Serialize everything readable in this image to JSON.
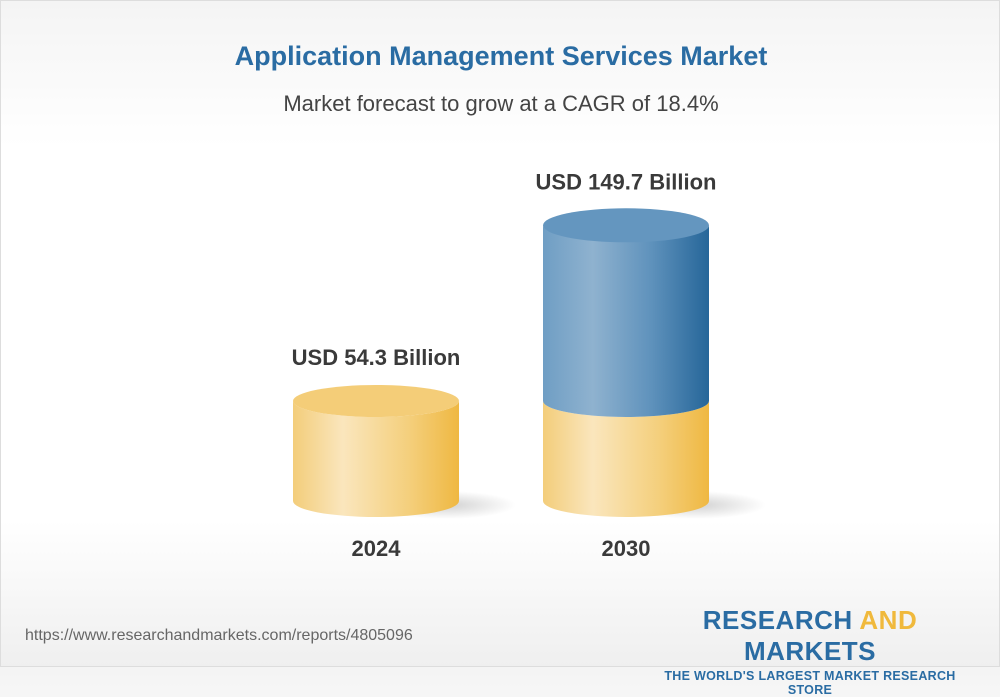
{
  "header": {
    "title": "Application Management Services Market",
    "subtitle": "Market forecast to grow at a CAGR of 18.4%"
  },
  "chart_data": {
    "type": "bar",
    "style": "3d-cylinder",
    "title": "Application Management Services Market",
    "subtitle": "Market forecast to grow at a CAGR of 18.4%",
    "categories": [
      "2024",
      "2030"
    ],
    "values": [
      54.3,
      149.7
    ],
    "data_labels": [
      "USD 54.3 Billion",
      "USD 149.7 Billion"
    ],
    "unit": "USD Billion",
    "cagr_percent": 18.4,
    "grid": false,
    "legend": "none",
    "colors": {
      "base": "#f2c260",
      "growth": "#3e7bab"
    }
  },
  "footer": {
    "url": "https://www.researchandmarkets.com/reports/4805096",
    "logo_part1": "RESEARCH ",
    "logo_part2": "AND",
    "logo_part3": " MARKETS",
    "logo_tagline": "THE WORLD'S LARGEST MARKET RESEARCH STORE"
  }
}
